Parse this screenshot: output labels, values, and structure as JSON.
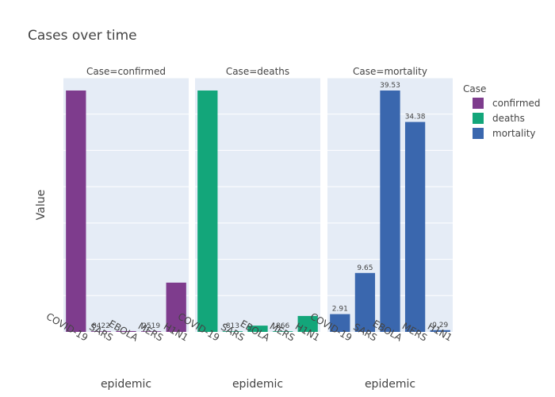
{
  "chart_data": {
    "type": "bar",
    "title": "Cases over time",
    "xlabel": "epidemic",
    "ylabel": "Value",
    "categories": [
      "COVID-19",
      "SARS",
      "EBOLA",
      "MERS",
      "H1N1"
    ],
    "legend": {
      "title": "Case",
      "position": "right"
    },
    "grid": true,
    "facets": [
      {
        "title": "Case=confirmed",
        "series_name": "confirmed",
        "color": "#7e3c8d",
        "values": [
          8000000,
          8422,
          28600,
          2519,
          1632000
        ],
        "labels": [
          "",
          "8422",
          "",
          "2519",
          ""
        ]
      },
      {
        "title": "Case=deaths",
        "series_name": "deaths",
        "color": "#13a67a",
        "values": [
          435000,
          813,
          11300,
          866,
          28700
        ],
        "labels": [
          "",
          "813",
          "",
          "866",
          ""
        ]
      },
      {
        "title": "Case=mortality",
        "series_name": "mortality",
        "color": "#3a67ae",
        "values": [
          2.91,
          9.65,
          39.53,
          34.38,
          0.29
        ],
        "labels": [
          "2.91",
          "9.65",
          "39.53",
          "34.38",
          "0.29"
        ]
      }
    ]
  }
}
